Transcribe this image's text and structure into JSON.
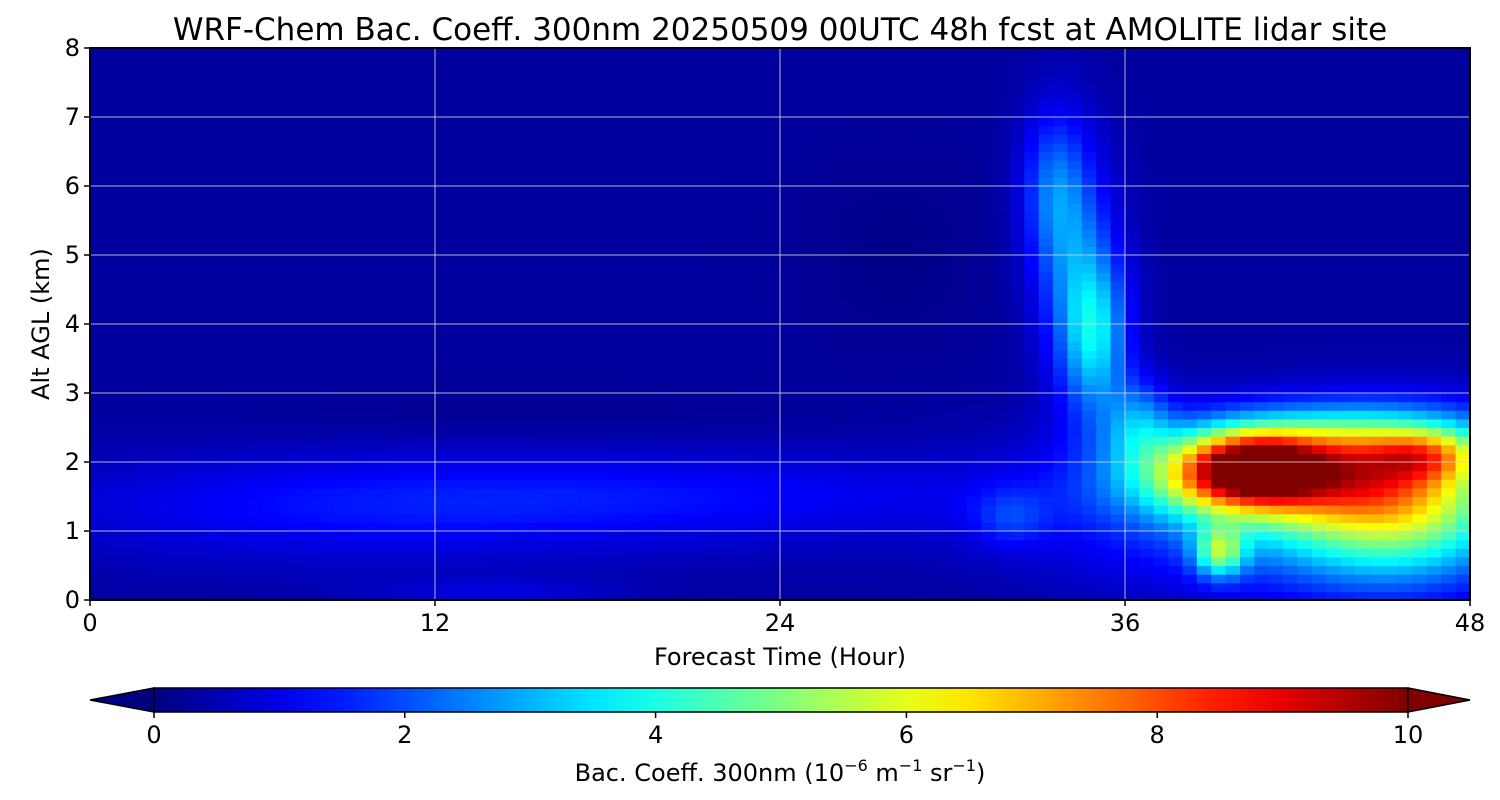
{
  "chart_data": {
    "type": "heatmap",
    "title": "WRF-Chem Bac. Coeff. 300nm  20250509 00UTC 48h fcst at AMOLITE lidar site",
    "xlabel": "Forecast Time (Hour)",
    "ylabel": "Alt AGL (km)",
    "xlim": [
      0,
      48
    ],
    "ylim": [
      0,
      8
    ],
    "x_ticks": [
      "0",
      "12",
      "24",
      "36",
      "48"
    ],
    "y_ticks": [
      "0",
      "1",
      "2",
      "3",
      "4",
      "5",
      "6",
      "7",
      "8"
    ],
    "grid": true,
    "colormap": "jet",
    "colorbar": {
      "orientation": "horizontal",
      "placement": "bottom",
      "label_main": "Bac. Coeff. 300nm  (10",
      "label_exp1": "−6",
      "label_mid": " m",
      "label_exp2": "−1",
      "label_mid2": " sr",
      "label_exp3": "−1",
      "label_end": ")",
      "range": [
        0,
        10
      ],
      "extend": "both",
      "ticks": [
        "0",
        "2",
        "4",
        "6",
        "8",
        "10"
      ]
    },
    "background_value": 0.3,
    "features": [
      {
        "x": 40.5,
        "y": 1.95,
        "sx": 1.4,
        "sy": 0.32,
        "amp": 4.0
      },
      {
        "x": 39.5,
        "y": 1.8,
        "sx": 2.2,
        "sy": 0.4,
        "amp": 3.5
      },
      {
        "x": 42.5,
        "y": 1.9,
        "sx": 3.2,
        "sy": 0.45,
        "amp": 4.0
      },
      {
        "x": 46.5,
        "y": 2.1,
        "sx": 1.3,
        "sy": 0.25,
        "amp": 2.5
      },
      {
        "x": 45.5,
        "y": 1.4,
        "sx": 2.8,
        "sy": 0.75,
        "amp": 4.0
      },
      {
        "x": 42.0,
        "y": 1.3,
        "sx": 5.5,
        "sy": 0.8,
        "amp": 2.2
      },
      {
        "x": 39.3,
        "y": 0.7,
        "sx": 0.6,
        "sy": 0.25,
        "amp": 3.5
      },
      {
        "x": 44.0,
        "y": 2.4,
        "sx": 4.5,
        "sy": 0.35,
        "amp": 1.5
      },
      {
        "x": 35.0,
        "y": 3.8,
        "sx": 0.8,
        "sy": 0.8,
        "amp": 2.5
      },
      {
        "x": 34.3,
        "y": 4.8,
        "sx": 1.0,
        "sy": 1.2,
        "amp": 1.8
      },
      {
        "x": 33.5,
        "y": 6.0,
        "sx": 0.8,
        "sy": 0.8,
        "amp": 1.6
      },
      {
        "x": 36.5,
        "y": 2.6,
        "sx": 0.8,
        "sy": 0.45,
        "amp": 1.8
      },
      {
        "x": 20.0,
        "y": 1.5,
        "sx": 10.0,
        "sy": 0.5,
        "amp": 0.9
      },
      {
        "x": 8.0,
        "y": 1.3,
        "sx": 8.0,
        "sy": 0.6,
        "amp": 0.7
      },
      {
        "x": 32.0,
        "y": 1.2,
        "sx": 0.9,
        "sy": 0.3,
        "amp": 0.9
      },
      {
        "x": 14.0,
        "y": 0.1,
        "sx": 3.0,
        "sy": 0.15,
        "amp": 0.6
      },
      {
        "x": 28.0,
        "y": 5.0,
        "sx": 2.5,
        "sy": 1.0,
        "amp": -0.2
      },
      {
        "x": 15.0,
        "y": 2.6,
        "sx": 8.0,
        "sy": 0.4,
        "amp": -0.15
      }
    ]
  }
}
